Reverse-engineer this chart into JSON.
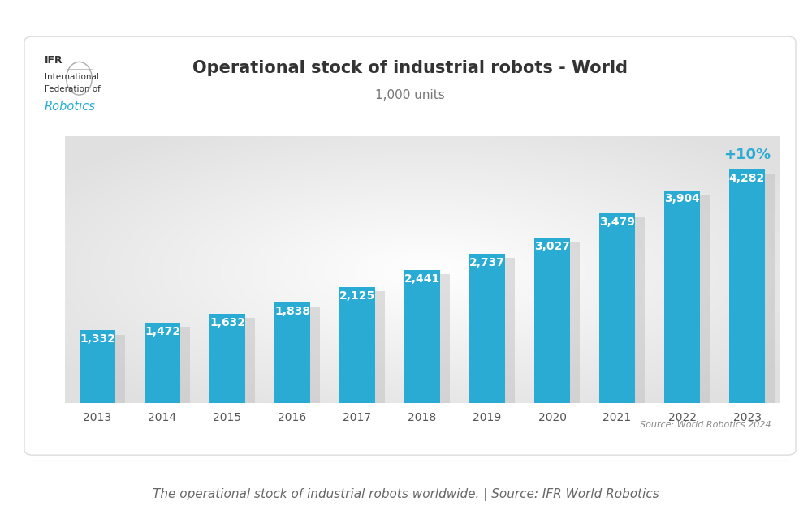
{
  "title": "Operational stock of industrial robots - World",
  "subtitle": "1,000 units",
  "years": [
    "2013",
    "2014",
    "2015",
    "2016",
    "2017",
    "2018",
    "2019",
    "2020",
    "2021",
    "2022",
    "2023"
  ],
  "values": [
    1332,
    1472,
    1632,
    1838,
    2125,
    2441,
    2737,
    3027,
    3479,
    3904,
    4282
  ],
  "bar_color": "#29ABD4",
  "value_labels": [
    "1,332",
    "1,472",
    "1,632",
    "1,838",
    "2,125",
    "2,441",
    "2,737",
    "3,027",
    "3,479",
    "3,904",
    "4,282"
  ],
  "pct_annotation": "+10%",
  "pct_color": "#29ABD4",
  "source_text": "Source: World Robotics 2024",
  "footer_text": "The operational stock of industrial robots worldwide. | Source: IFR World Robotics",
  "background_color": "#FFFFFF",
  "title_fontsize": 15,
  "subtitle_fontsize": 11,
  "label_fontsize": 10,
  "tick_fontsize": 10,
  "footer_fontsize": 11,
  "ylim": [
    0,
    4900
  ],
  "ifr_text_color": "#333333",
  "robotics_color": "#29ABD4",
  "shadow_color": "#BBBBBB",
  "chart_border_color": "#DDDDDD"
}
